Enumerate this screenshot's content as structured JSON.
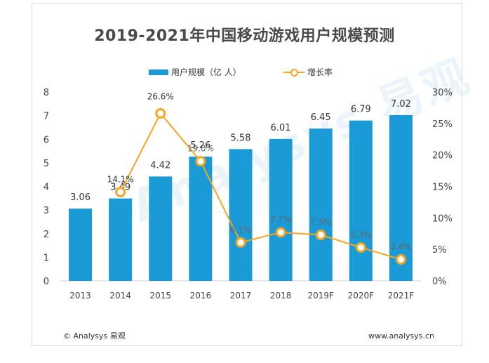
{
  "title": "2019-2021年中国移动游戏用户规模预测",
  "legend": {
    "bar_label": "用户规模（亿 人）",
    "line_label": "增长率"
  },
  "footer": {
    "left": "© Analysys 易观",
    "right": "www.analysys.cn"
  },
  "watermark": "Analysys 易观",
  "colors": {
    "bar": "#1a9ad6",
    "line": "#f5a623"
  },
  "chart_data": {
    "type": "bar",
    "categories": [
      "2013",
      "2014",
      "2015",
      "2016",
      "2017",
      "2018",
      "2019F",
      "2020F",
      "2021F"
    ],
    "series": [
      {
        "name": "用户规模（亿 人）",
        "type": "bar",
        "axis": "left",
        "values": [
          3.06,
          3.49,
          4.42,
          5.26,
          5.58,
          6.01,
          6.45,
          6.79,
          7.02
        ],
        "labels": [
          "3.06",
          "3.49",
          "4.42",
          "5.26",
          "5.58",
          "6.01",
          "6.45",
          "6.79",
          "7.02"
        ]
      },
      {
        "name": "增长率",
        "type": "line",
        "axis": "right",
        "values": [
          null,
          14.1,
          26.6,
          19.0,
          6.1,
          7.7,
          7.3,
          5.3,
          3.4
        ],
        "labels": [
          "",
          "14.1%",
          "26.6%",
          "19.0%",
          "6.1%",
          "7.7%",
          "7.3%",
          "5.3%",
          "3.4%"
        ]
      }
    ],
    "y_left": {
      "ylim": [
        0,
        8
      ],
      "ticks": [
        "0",
        "1",
        "2",
        "3",
        "4",
        "5",
        "6",
        "7",
        "8"
      ]
    },
    "y_right": {
      "ylim": [
        0,
        30
      ],
      "ticks": [
        "0%",
        "5%",
        "10%",
        "15%",
        "20%",
        "25%",
        "30%"
      ]
    },
    "grid": false,
    "legend_position": "top"
  }
}
